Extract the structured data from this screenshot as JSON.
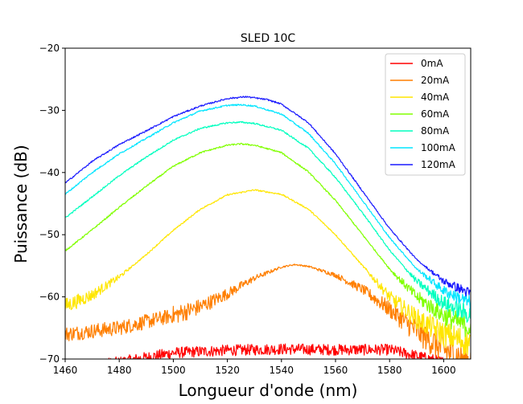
{
  "chart_data": {
    "type": "line",
    "title": "SLED 10C",
    "xlabel": "Longueur d'onde (nm)",
    "ylabel": "Puissance (dB)",
    "xlim": [
      1460,
      1610
    ],
    "ylim": [
      -70,
      -20
    ],
    "xticks": [
      1460,
      1480,
      1500,
      1520,
      1540,
      1560,
      1580,
      1600
    ],
    "yticks": [
      -70,
      -60,
      -50,
      -40,
      -30,
      -20
    ],
    "grid": false,
    "legend_position": "top-right",
    "series": [
      {
        "name": "0mA",
        "color": "#ff0000",
        "x": [
          1460,
          1480,
          1500,
          1520,
          1540,
          1560,
          1580,
          1600,
          1610
        ],
        "y": [
          -71.5,
          -70.5,
          -69.0,
          -68.6,
          -68.4,
          -68.5,
          -68.5,
          -70.5,
          -72.0
        ]
      },
      {
        "name": "20mA",
        "color": "#ff7f00",
        "x": [
          1460,
          1480,
          1500,
          1510,
          1520,
          1530,
          1540,
          1545,
          1550,
          1560,
          1570,
          1580,
          1590,
          1600,
          1610
        ],
        "y": [
          -66.0,
          -65.0,
          -63.0,
          -61.6,
          -59.5,
          -57.0,
          -55.2,
          -54.8,
          -55.1,
          -56.5,
          -58.8,
          -62.0,
          -65.5,
          -68.5,
          -70.5
        ]
      },
      {
        "name": "40mA",
        "color": "#ffe600",
        "x": [
          1460,
          1470,
          1480,
          1490,
          1500,
          1510,
          1520,
          1530,
          1540,
          1550,
          1560,
          1570,
          1580,
          1590,
          1600,
          1610
        ],
        "y": [
          -61.5,
          -59.7,
          -56.8,
          -53.2,
          -49.3,
          -45.9,
          -43.6,
          -42.8,
          -43.5,
          -45.9,
          -50.0,
          -55.0,
          -60.0,
          -63.5,
          -66.0,
          -67.5
        ]
      },
      {
        "name": "60mA",
        "color": "#80ff00",
        "x": [
          1460,
          1470,
          1480,
          1490,
          1500,
          1510,
          1520,
          1525,
          1530,
          1540,
          1550,
          1560,
          1570,
          1580,
          1590,
          1600,
          1610
        ],
        "y": [
          -52.6,
          -49.2,
          -45.6,
          -42.2,
          -39.0,
          -36.8,
          -35.6,
          -35.4,
          -35.6,
          -36.8,
          -39.9,
          -44.5,
          -50.0,
          -55.5,
          -60.0,
          -63.0,
          -65.0
        ]
      },
      {
        "name": "80mA",
        "color": "#00ffbf",
        "x": [
          1460,
          1470,
          1480,
          1490,
          1500,
          1510,
          1520,
          1525,
          1530,
          1540,
          1550,
          1560,
          1570,
          1580,
          1590,
          1600,
          1610
        ],
        "y": [
          -47.3,
          -43.9,
          -40.5,
          -37.5,
          -34.8,
          -32.9,
          -32.0,
          -31.9,
          -32.1,
          -33.2,
          -36.1,
          -40.8,
          -46.5,
          -52.5,
          -57.5,
          -61.0,
          -63.0
        ]
      },
      {
        "name": "100mA",
        "color": "#00e5ff",
        "x": [
          1460,
          1470,
          1480,
          1490,
          1500,
          1510,
          1520,
          1525,
          1530,
          1540,
          1550,
          1560,
          1570,
          1580,
          1590,
          1600,
          1610
        ],
        "y": [
          -43.5,
          -40.0,
          -37.0,
          -34.5,
          -32.0,
          -30.1,
          -29.2,
          -29.1,
          -29.3,
          -30.6,
          -33.7,
          -38.6,
          -44.5,
          -50.5,
          -55.5,
          -59.0,
          -61.0
        ]
      },
      {
        "name": "120mA",
        "color": "#1a1aff",
        "x": [
          1460,
          1470,
          1480,
          1490,
          1500,
          1510,
          1520,
          1527,
          1535,
          1540,
          1550,
          1560,
          1570,
          1580,
          1590,
          1600,
          1610
        ],
        "y": [
          -41.7,
          -38.2,
          -35.5,
          -33.3,
          -31.0,
          -29.3,
          -28.1,
          -27.8,
          -28.3,
          -29.0,
          -32.0,
          -37.0,
          -43.0,
          -49.0,
          -54.0,
          -57.5,
          -59.5
        ]
      }
    ]
  }
}
